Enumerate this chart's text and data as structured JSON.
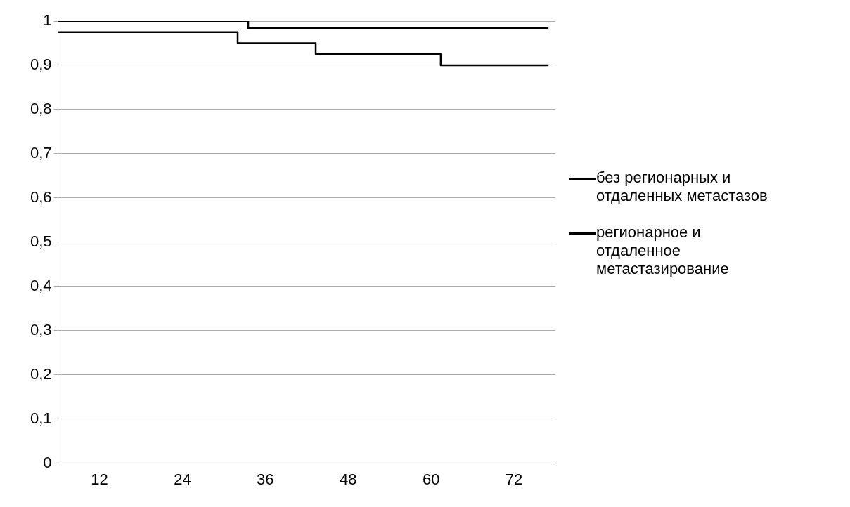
{
  "chart_data": {
    "type": "step",
    "xlim": [
      6,
      78
    ],
    "xticks": [
      12,
      24,
      36,
      48,
      60,
      72
    ],
    "ylim": [
      0,
      1
    ],
    "yticks": [
      0,
      {
        "value": 0.1,
        "label": "0,1"
      },
      {
        "value": 0.2,
        "label": "0,2"
      },
      {
        "value": 0.3,
        "label": "0,3"
      },
      {
        "value": 0.4,
        "label": "0,4"
      },
      {
        "value": 0.5,
        "label": "0,5"
      },
      {
        "value": 0.6,
        "label": "0,6"
      },
      {
        "value": 0.7,
        "label": "0,7"
      },
      {
        "value": 0.8,
        "label": "0,8"
      },
      {
        "value": 0.9,
        "label": "0,9"
      },
      1
    ],
    "grid": "y",
    "legend": "right",
    "series": [
      {
        "name": "без регионарных и отдаленных метастазов",
        "color": "#000000",
        "x": [
          6,
          33.5,
          77
        ],
        "values": [
          1,
          0.985,
          0.985
        ]
      },
      {
        "name": "регионарное и отдаленное метастазирование",
        "color": "#000000",
        "x": [
          6,
          32,
          43.3,
          61.4,
          77
        ],
        "values": [
          0.975,
          0.95,
          0.925,
          0.9,
          0.9
        ]
      }
    ]
  }
}
